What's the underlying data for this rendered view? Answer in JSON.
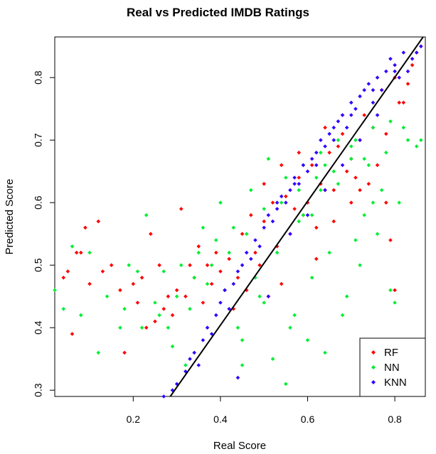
{
  "chart_data": {
    "type": "scatter",
    "title": "Real vs Predicted IMDB Ratings",
    "xlabel": "Real Score",
    "ylabel": "Predicted Score",
    "xlim": [
      0.02,
      0.87
    ],
    "ylim": [
      0.29,
      0.865
    ],
    "xticks": [
      0.2,
      0.4,
      0.6,
      0.8
    ],
    "yticks": [
      0.3,
      0.4,
      0.5,
      0.6,
      0.7,
      0.8
    ],
    "grid": false,
    "legend_position": "bottom-right",
    "reference_line": {
      "from": [
        0.285,
        0.29
      ],
      "to": [
        0.865,
        0.865
      ],
      "color": "#000000"
    },
    "series": [
      {
        "name": "RF",
        "color": "#ff0000",
        "x": [
          0.04,
          0.05,
          0.06,
          0.07,
          0.09,
          0.12,
          0.15,
          0.18,
          0.2,
          0.22,
          0.24,
          0.26,
          0.28,
          0.3,
          0.31,
          0.33,
          0.35,
          0.36,
          0.38,
          0.4,
          0.42,
          0.43,
          0.45,
          0.47,
          0.48,
          0.5,
          0.52,
          0.53,
          0.55,
          0.57,
          0.58,
          0.6,
          0.61,
          0.62,
          0.63,
          0.65,
          0.66,
          0.67,
          0.68,
          0.7,
          0.71,
          0.72,
          0.73,
          0.75,
          0.76,
          0.77,
          0.78,
          0.8,
          0.81,
          0.83,
          0.84,
          0.85,
          0.56,
          0.59,
          0.64,
          0.69,
          0.74,
          0.79,
          0.44,
          0.49,
          0.54,
          0.51,
          0.46,
          0.39,
          0.34,
          0.29,
          0.25,
          0.21,
          0.17,
          0.13,
          0.1,
          0.08,
          0.23,
          0.27,
          0.32,
          0.37,
          0.41,
          0.86,
          0.82,
          0.62,
          0.66,
          0.7,
          0.72,
          0.58,
          0.54,
          0.5,
          0.64,
          0.68,
          0.78,
          0.8
        ],
        "y": [
          0.48,
          0.49,
          0.39,
          0.52,
          0.56,
          0.57,
          0.5,
          0.36,
          0.47,
          0.48,
          0.55,
          0.5,
          0.45,
          0.46,
          0.59,
          0.5,
          0.53,
          0.44,
          0.47,
          0.49,
          0.51,
          0.43,
          0.55,
          0.58,
          0.52,
          0.57,
          0.6,
          0.53,
          0.61,
          0.59,
          0.64,
          0.6,
          0.66,
          0.56,
          0.63,
          0.68,
          0.62,
          0.69,
          0.71,
          0.67,
          0.64,
          0.7,
          0.74,
          0.72,
          0.66,
          0.78,
          0.71,
          0.8,
          0.76,
          0.79,
          0.82,
          0.84,
          0.55,
          0.58,
          0.62,
          0.65,
          0.63,
          0.54,
          0.48,
          0.5,
          0.47,
          0.45,
          0.46,
          0.52,
          0.48,
          0.42,
          0.41,
          0.44,
          0.46,
          0.49,
          0.47,
          0.52,
          0.4,
          0.43,
          0.45,
          0.5,
          0.46,
          0.85,
          0.76,
          0.51,
          0.57,
          0.6,
          0.62,
          0.68,
          0.66,
          0.63,
          0.72,
          0.74,
          0.6,
          0.46
        ]
      },
      {
        "name": "NN",
        "color": "#00ee33",
        "x": [
          0.02,
          0.04,
          0.06,
          0.08,
          0.1,
          0.12,
          0.14,
          0.17,
          0.19,
          0.21,
          0.23,
          0.25,
          0.27,
          0.29,
          0.31,
          0.33,
          0.35,
          0.37,
          0.39,
          0.41,
          0.43,
          0.45,
          0.47,
          0.49,
          0.51,
          0.53,
          0.55,
          0.57,
          0.59,
          0.61,
          0.63,
          0.65,
          0.67,
          0.69,
          0.71,
          0.73,
          0.75,
          0.77,
          0.79,
          0.81,
          0.83,
          0.85,
          0.86,
          0.18,
          0.22,
          0.26,
          0.3,
          0.34,
          0.38,
          0.42,
          0.46,
          0.5,
          0.54,
          0.58,
          0.62,
          0.66,
          0.7,
          0.74,
          0.78,
          0.82,
          0.36,
          0.4,
          0.44,
          0.48,
          0.52,
          0.56,
          0.6,
          0.64,
          0.68,
          0.72,
          0.76,
          0.8,
          0.55,
          0.58,
          0.61,
          0.64,
          0.67,
          0.7,
          0.73,
          0.28,
          0.32,
          0.45,
          0.5,
          0.59,
          0.63,
          0.71,
          0.75,
          0.79,
          0.84
        ],
        "y": [
          0.46,
          0.43,
          0.53,
          0.42,
          0.52,
          0.36,
          0.45,
          0.4,
          0.5,
          0.49,
          0.58,
          0.44,
          0.49,
          0.37,
          0.5,
          0.43,
          0.52,
          0.47,
          0.54,
          0.46,
          0.56,
          0.38,
          0.62,
          0.45,
          0.67,
          0.52,
          0.64,
          0.42,
          0.66,
          0.48,
          0.68,
          0.52,
          0.7,
          0.45,
          0.7,
          0.58,
          0.72,
          0.62,
          0.73,
          0.6,
          0.7,
          0.69,
          0.7,
          0.43,
          0.4,
          0.42,
          0.45,
          0.48,
          0.5,
          0.52,
          0.55,
          0.59,
          0.6,
          0.62,
          0.64,
          0.65,
          0.67,
          0.66,
          0.68,
          0.72,
          0.56,
          0.6,
          0.4,
          0.48,
          0.35,
          0.4,
          0.38,
          0.36,
          0.42,
          0.5,
          0.55,
          0.44,
          0.31,
          0.57,
          0.58,
          0.66,
          0.63,
          0.69,
          0.67,
          0.4,
          0.34,
          0.34,
          0.44,
          0.58,
          0.62,
          0.54,
          0.6,
          0.46,
          0.34
        ]
      },
      {
        "name": "KNN",
        "color": "#3300ff",
        "x": [
          0.27,
          0.29,
          0.3,
          0.32,
          0.33,
          0.34,
          0.35,
          0.36,
          0.37,
          0.38,
          0.39,
          0.4,
          0.41,
          0.42,
          0.43,
          0.44,
          0.45,
          0.46,
          0.47,
          0.48,
          0.49,
          0.5,
          0.51,
          0.52,
          0.53,
          0.54,
          0.55,
          0.56,
          0.57,
          0.58,
          0.59,
          0.6,
          0.61,
          0.62,
          0.63,
          0.64,
          0.65,
          0.66,
          0.67,
          0.68,
          0.69,
          0.7,
          0.71,
          0.72,
          0.73,
          0.74,
          0.75,
          0.76,
          0.77,
          0.78,
          0.79,
          0.8,
          0.81,
          0.82,
          0.83,
          0.84,
          0.85,
          0.86,
          0.44,
          0.51,
          0.56,
          0.6,
          0.64,
          0.68,
          0.72,
          0.76,
          0.53,
          0.57,
          0.62,
          0.66,
          0.7,
          0.75,
          0.8
        ],
        "y": [
          0.29,
          0.3,
          0.31,
          0.33,
          0.35,
          0.36,
          0.34,
          0.38,
          0.4,
          0.39,
          0.42,
          0.44,
          0.46,
          0.43,
          0.47,
          0.49,
          0.5,
          0.52,
          0.51,
          0.54,
          0.53,
          0.56,
          0.58,
          0.57,
          0.59,
          0.61,
          0.6,
          0.62,
          0.64,
          0.63,
          0.66,
          0.65,
          0.67,
          0.68,
          0.7,
          0.69,
          0.71,
          0.72,
          0.73,
          0.74,
          0.72,
          0.76,
          0.75,
          0.77,
          0.78,
          0.79,
          0.76,
          0.8,
          0.78,
          0.81,
          0.83,
          0.82,
          0.8,
          0.84,
          0.81,
          0.83,
          0.84,
          0.85,
          0.32,
          0.45,
          0.55,
          0.58,
          0.62,
          0.66,
          0.7,
          0.74,
          0.6,
          0.63,
          0.66,
          0.7,
          0.74,
          0.78,
          0.81
        ]
      }
    ]
  }
}
